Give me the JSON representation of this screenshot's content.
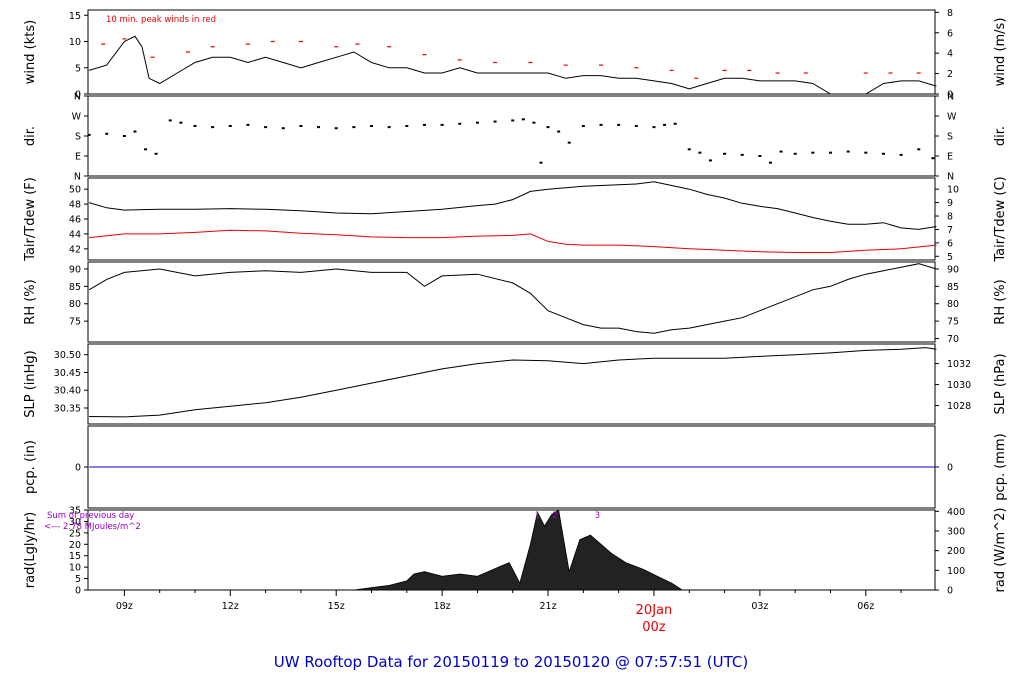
{
  "footer_title": "UW Rooftop Data for 20150119  to  20150120 @ 07:57:51  (UTC)",
  "colors": {
    "primary": "#000000",
    "temp_dew": "#ee0000",
    "peak": "#ee0000",
    "precip": "#0000cc",
    "annotation": "#9900cc",
    "title": "#0000cc",
    "date_label": "#ee0000"
  },
  "time_axis": {
    "tick_labels": [
      "09z",
      "12z",
      "15z",
      "18z",
      "21z",
      "03z",
      "06z"
    ],
    "tick_hours": [
      9,
      12,
      15,
      18,
      21,
      27,
      30
    ],
    "minor_tick_hours": [
      10,
      11,
      13,
      14,
      16,
      17,
      19,
      20,
      22,
      23,
      25,
      26,
      28,
      29,
      31
    ],
    "day_label": "20Jan",
    "day_hour_label": "00z",
    "day_hour": 24,
    "range_hours": [
      7.97,
      31.96
    ]
  },
  "chart_data": [
    {
      "type": "line",
      "panel": "wind",
      "ylabel_left": "wind (kts)",
      "ylabel_right": "wind (m/s)",
      "ylim": [
        0,
        16
      ],
      "left_ticks": [
        0,
        5,
        10,
        15
      ],
      "right_ticks": [
        0,
        2,
        4,
        6,
        8
      ],
      "annotation": "10 min. peak winds in red",
      "series": [
        {
          "name": "",
          "x": [
            8,
            8.5,
            9,
            9.3,
            9.5,
            9.7,
            10,
            10.5,
            11,
            11.5,
            12,
            12.5,
            13,
            13.5,
            14,
            14.5,
            15,
            15.5,
            16,
            16.5,
            17,
            17.5,
            18,
            18.5,
            19,
            19.5,
            20,
            20.5,
            21,
            21.5,
            22,
            22.5,
            23,
            23.5,
            24,
            24.5,
            25,
            25.5,
            26,
            26.5,
            27,
            27.5,
            28,
            28.5,
            29,
            29.5,
            30,
            30.5,
            31,
            31.5,
            32
          ],
          "values": [
            4.5,
            5.5,
            10,
            11,
            9,
            3,
            2,
            4,
            6,
            7,
            7,
            6,
            7,
            6,
            5,
            6,
            7,
            8,
            6,
            5,
            5,
            4,
            4,
            5,
            4,
            4,
            4,
            4,
            4,
            3,
            3.5,
            3.5,
            3,
            3,
            2.5,
            2,
            1,
            2,
            3,
            3,
            2.5,
            2.5,
            2.5,
            2,
            0,
            0,
            0,
            2,
            2.5,
            2.5,
            1.5
          ]
        },
        {
          "name": "",
          "x": [
            8.4,
            9,
            9.8,
            10.8,
            11.5,
            12.5,
            13.2,
            14,
            15,
            15.6,
            16.5,
            17.5,
            18.5,
            19.5,
            20.5,
            21.5,
            22.5,
            23.5,
            24.5,
            25.2,
            26,
            26.7,
            27.5,
            28.3,
            30,
            30.7,
            31.5
          ],
          "values": [
            9.5,
            10.5,
            7,
            8,
            9,
            9.5,
            10,
            10,
            9,
            9.5,
            9,
            7.5,
            6.5,
            6,
            6,
            5.5,
            5.5,
            5,
            4.5,
            3,
            4.5,
            4.5,
            4,
            4,
            4,
            4,
            4
          ]
        }
      ]
    },
    {
      "type": "scatter",
      "panel": "direction",
      "ylabel_left": "dir.",
      "ylabel_right": "dir.",
      "ylim": [
        0,
        360
      ],
      "tick_labels": [
        "N",
        "E",
        "S",
        "W",
        "N"
      ],
      "tick_values": [
        0,
        90,
        180,
        270,
        360
      ],
      "series": [
        {
          "name": "",
          "x": [
            8,
            8.5,
            9,
            9.3,
            9.6,
            9.9,
            10.3,
            10.6,
            11,
            11.5,
            12,
            12.5,
            13,
            13.5,
            14,
            14.5,
            15,
            15.5,
            16,
            16.5,
            17,
            17.5,
            18,
            18.5,
            19,
            19.5,
            20,
            20.3,
            20.6,
            20.8,
            21,
            21.3,
            21.6,
            22,
            22.5,
            23,
            23.5,
            24,
            24.3,
            24.6,
            25,
            25.3,
            25.6,
            26,
            26.5,
            27,
            27.3,
            27.6,
            28,
            28.5,
            29,
            29.5,
            30,
            30.5,
            31,
            31.5,
            31.9
          ],
          "values": [
            185,
            190,
            180,
            200,
            120,
            100,
            250,
            240,
            225,
            220,
            225,
            230,
            220,
            215,
            225,
            220,
            215,
            220,
            225,
            220,
            225,
            230,
            230,
            235,
            240,
            245,
            250,
            255,
            240,
            60,
            220,
            200,
            150,
            225,
            230,
            230,
            225,
            220,
            230,
            235,
            120,
            105,
            70,
            100,
            95,
            90,
            60,
            110,
            100,
            105,
            105,
            110,
            105,
            100,
            95,
            120,
            80
          ]
        }
      ]
    },
    {
      "type": "line",
      "panel": "temperature",
      "ylabel_left": "Tair/Tdew (F)",
      "ylabel_right": "Tair/Tdew (C)",
      "ylim": [
        40.5,
        51.5
      ],
      "left_ticks": [
        42,
        44,
        46,
        48,
        50
      ],
      "right_ticks": [
        5,
        6,
        7,
        8,
        9,
        10
      ],
      "series": [
        {
          "name": "",
          "x": [
            8,
            8.5,
            9,
            10,
            11,
            12,
            13,
            14,
            15,
            16,
            17,
            18,
            19,
            19.5,
            20,
            20.5,
            21,
            21.5,
            22,
            22.5,
            23,
            23.5,
            24,
            24.5,
            25,
            25.5,
            26,
            26.5,
            27,
            27.5,
            28,
            28.5,
            29,
            29.5,
            30,
            30.5,
            31,
            31.5,
            32
          ],
          "values": [
            48.2,
            47.5,
            47.2,
            47.3,
            47.3,
            47.4,
            47.3,
            47.1,
            46.8,
            46.7,
            47,
            47.3,
            47.8,
            48,
            48.6,
            49.7,
            50,
            50.2,
            50.4,
            50.5,
            50.6,
            50.7,
            51,
            50.5,
            50,
            49.3,
            48.8,
            48.1,
            47.7,
            47.4,
            46.8,
            46.2,
            45.7,
            45.3,
            45.3,
            45.5,
            44.8,
            44.6,
            45
          ]
        },
        {
          "name": "",
          "x": [
            8,
            9,
            10,
            11,
            12,
            13,
            14,
            15,
            16,
            17,
            18,
            19,
            20,
            20.5,
            21,
            21.5,
            22,
            23,
            24,
            25,
            26,
            27,
            28,
            29,
            30,
            31,
            32
          ],
          "values": [
            43.5,
            44,
            44,
            44.2,
            44.5,
            44.4,
            44.1,
            43.9,
            43.6,
            43.5,
            43.5,
            43.7,
            43.8,
            44,
            43,
            42.6,
            42.5,
            42.5,
            42.3,
            42,
            41.8,
            41.6,
            41.5,
            41.5,
            41.8,
            42,
            42.5
          ]
        }
      ]
    },
    {
      "type": "line",
      "panel": "humidity",
      "ylabel_left": "RH (%)",
      "ylabel_right": "RH (%)",
      "ylim": [
        69,
        92
      ],
      "left_ticks": [
        75,
        80,
        85,
        90
      ],
      "right_ticks": [
        70,
        75,
        80,
        85,
        90
      ],
      "series": [
        {
          "name": "",
          "x": [
            8,
            8.5,
            9,
            10,
            11,
            12,
            13,
            14,
            15,
            16,
            17,
            17.5,
            18,
            19,
            20,
            20.5,
            21,
            21.5,
            22,
            22.5,
            23,
            23.5,
            24,
            24.5,
            25,
            25.5,
            26,
            26.5,
            27,
            27.5,
            28,
            28.5,
            29,
            29.5,
            30,
            30.5,
            31,
            31.5,
            32
          ],
          "values": [
            84,
            87,
            89,
            90,
            88,
            89,
            89.5,
            89,
            90,
            89,
            89,
            85,
            88,
            88.5,
            86,
            83,
            78,
            76,
            74,
            73,
            73,
            72,
            71.5,
            72.5,
            73,
            74,
            75,
            76,
            78,
            80,
            82,
            84,
            85,
            87,
            88.5,
            89.5,
            90.5,
            91.5,
            90
          ]
        }
      ]
    },
    {
      "type": "line",
      "panel": "pressure",
      "ylabel_left": "SLP (inHg)",
      "ylabel_right": "SLP (hPa)",
      "ylim": [
        30.305,
        30.53
      ],
      "left_ticks": [
        30.35,
        30.4,
        30.45,
        30.5
      ],
      "left_tick_labels": [
        "30.35",
        "30.40",
        "30.45",
        "30.50"
      ],
      "right_ticks": [
        1028,
        1030,
        1032
      ],
      "series": [
        {
          "name": "",
          "x": [
            8,
            9,
            10,
            11,
            12,
            13,
            14,
            15,
            16,
            17,
            18,
            19,
            20,
            21,
            22,
            23,
            24,
            25,
            26,
            27,
            28,
            29,
            30,
            31,
            31.7,
            32
          ],
          "values": [
            30.326,
            30.325,
            30.33,
            30.345,
            30.355,
            30.365,
            30.38,
            30.4,
            30.42,
            30.44,
            30.46,
            30.475,
            30.485,
            30.483,
            30.475,
            30.485,
            30.49,
            30.49,
            30.49,
            30.495,
            30.5,
            30.505,
            30.512,
            30.515,
            30.52,
            30.515
          ]
        }
      ]
    },
    {
      "type": "line",
      "panel": "precipitation",
      "ylabel_left": "pcp. (in)",
      "ylabel_right": "pcp. (mm)",
      "ylim": [
        -1,
        1
      ],
      "left_ticks": [
        0
      ],
      "right_ticks": [
        0
      ],
      "series": [
        {
          "name": "",
          "x": [
            8,
            32
          ],
          "values": [
            0,
            0
          ]
        }
      ]
    },
    {
      "type": "area",
      "panel": "radiation",
      "ylabel_left": "rad(Lgly/hr)",
      "ylabel_right": "rad (W/m^2)",
      "ylim": [
        0,
        35
      ],
      "left_ticks": [
        0,
        5,
        10,
        15,
        20,
        25,
        30,
        35
      ],
      "right_ticks": [
        0,
        100,
        200,
        300,
        400
      ],
      "annotation_1": "Sum of previous day",
      "annotation_2": "<--- 2.78 MJoules/m^2",
      "markers": [
        {
          "label": "1",
          "x": 20.7
        },
        {
          "label": "2",
          "x": 21.2
        },
        {
          "label": "3",
          "x": 22.4
        }
      ],
      "series": [
        {
          "name": "",
          "x": [
            15.5,
            16,
            16.5,
            17,
            17.2,
            17.5,
            18,
            18.5,
            19,
            19.3,
            19.6,
            19.9,
            20.2,
            20.5,
            20.7,
            20.9,
            21.1,
            21.3,
            21.6,
            21.9,
            22.2,
            22.5,
            22.8,
            23.2,
            23.7,
            24.1,
            24.5,
            24.8
          ],
          "values": [
            0,
            1,
            2,
            4,
            7,
            8,
            6,
            7,
            6,
            8,
            10,
            12,
            3,
            20,
            34,
            28,
            33,
            35,
            8,
            22,
            24,
            20,
            16,
            12,
            9,
            6,
            3,
            0
          ]
        }
      ]
    }
  ]
}
